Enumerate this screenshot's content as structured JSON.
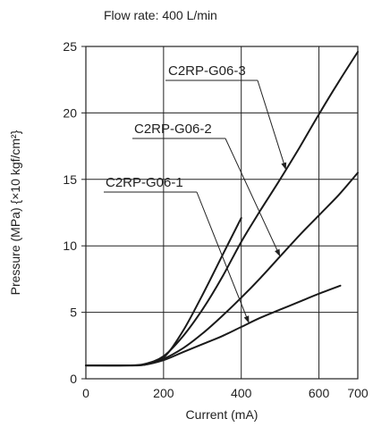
{
  "chart_data": {
    "type": "line",
    "title": "Flow rate: 400 L/min",
    "xlabel": "Current (mA)",
    "ylabel": "Pressure (MPa) {×10 kgf/cm²}",
    "xlim": [
      0,
      700
    ],
    "ylim": [
      0,
      25
    ],
    "xticks": [
      0,
      200,
      400,
      600,
      700
    ],
    "yticks": [
      0,
      5,
      10,
      15,
      20,
      25
    ],
    "grid": true,
    "series": [
      {
        "name": "C2RP-G06-1",
        "points": [
          [
            0,
            1
          ],
          [
            100,
            1
          ],
          [
            150,
            1.05
          ],
          [
            200,
            1.4
          ],
          [
            250,
            2.0
          ],
          [
            300,
            2.6
          ],
          [
            350,
            3.2
          ],
          [
            400,
            3.9
          ],
          [
            450,
            4.6
          ],
          [
            500,
            5.2
          ],
          [
            550,
            5.8
          ],
          [
            600,
            6.4
          ],
          [
            655,
            7.0
          ]
        ]
      },
      {
        "name": "C2RP-G06-2",
        "points": [
          [
            0,
            1
          ],
          [
            100,
            1
          ],
          [
            150,
            1.05
          ],
          [
            200,
            1.5
          ],
          [
            250,
            2.3
          ],
          [
            300,
            3.4
          ],
          [
            350,
            4.7
          ],
          [
            400,
            6.1
          ],
          [
            450,
            7.6
          ],
          [
            500,
            9.2
          ],
          [
            550,
            10.8
          ],
          [
            600,
            12.3
          ],
          [
            650,
            13.8
          ],
          [
            700,
            15.5
          ]
        ]
      },
      {
        "name": "C2RP-G06-3",
        "points": [
          [
            0,
            1
          ],
          [
            100,
            1
          ],
          [
            150,
            1.1
          ],
          [
            200,
            1.7
          ],
          [
            250,
            3.2
          ],
          [
            300,
            5.2
          ],
          [
            350,
            7.6
          ],
          [
            400,
            10.3
          ],
          [
            450,
            12.7
          ],
          [
            500,
            15.0
          ],
          [
            550,
            17.4
          ],
          [
            600,
            19.9
          ],
          [
            650,
            22.3
          ],
          [
            700,
            24.6
          ]
        ]
      },
      {
        "name": "",
        "points": [
          [
            150,
            1.05
          ],
          [
            200,
            1.6
          ],
          [
            250,
            3.6
          ],
          [
            300,
            6.3
          ],
          [
            350,
            9.2
          ],
          [
            400,
            12.1
          ]
        ]
      }
    ],
    "annotations": [
      {
        "label": "C2RP-G06-3",
        "target_series": "C2RP-G06-3"
      },
      {
        "label": "C2RP-G06-2",
        "target_series": "C2RP-G06-2"
      },
      {
        "label": "C2RP-G06-1",
        "target_series": "C2RP-G06-1"
      }
    ]
  }
}
